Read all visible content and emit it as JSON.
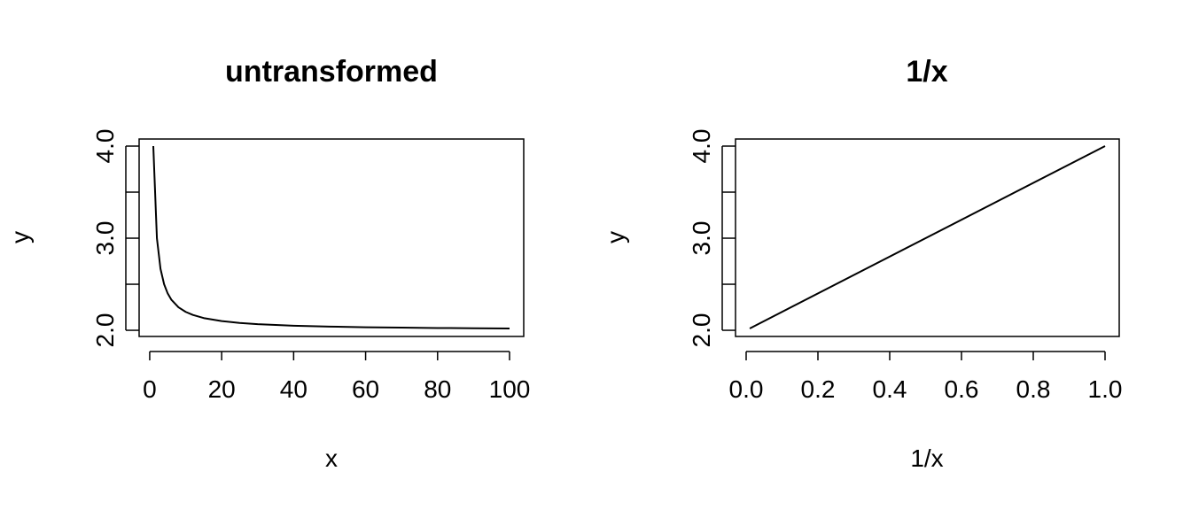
{
  "chart_data": [
    {
      "type": "line",
      "title": "untransformed",
      "xlabel": "x",
      "ylabel": "y",
      "xlim": [
        1,
        100
      ],
      "ylim": [
        2.01,
        4.0
      ],
      "x_ticks": [
        0,
        20,
        40,
        60,
        80,
        100
      ],
      "x_tick_labels": [
        "0",
        "20",
        "40",
        "60",
        "80",
        "100"
      ],
      "y_ticks": [
        2.0,
        2.5,
        3.0,
        3.5,
        4.0
      ],
      "y_tick_labels": [
        "2.0",
        "",
        "3.0",
        "",
        "4.0"
      ],
      "grid": false,
      "series": [
        {
          "x": [
            1,
            2,
            3,
            4,
            5,
            6,
            8,
            10,
            12,
            15,
            20,
            25,
            30,
            40,
            50,
            60,
            70,
            80,
            90,
            100
          ],
          "values": [
            4.0,
            3.0,
            2.667,
            2.5,
            2.4,
            2.333,
            2.25,
            2.2,
            2.167,
            2.133,
            2.1,
            2.08,
            2.067,
            2.05,
            2.04,
            2.033,
            2.029,
            2.025,
            2.022,
            2.02
          ]
        }
      ]
    },
    {
      "type": "line",
      "title": "1/x",
      "xlabel": "1/x",
      "ylabel": "y",
      "xlim": [
        0.0,
        1.0
      ],
      "ylim": [
        2.01,
        4.0
      ],
      "x_ticks": [
        0.0,
        0.2,
        0.4,
        0.6,
        0.8,
        1.0
      ],
      "x_tick_labels": [
        "0.0",
        "0.2",
        "0.4",
        "0.6",
        "0.8",
        "1.0"
      ],
      "y_ticks": [
        2.0,
        2.5,
        3.0,
        3.5,
        4.0
      ],
      "y_tick_labels": [
        "2.0",
        "",
        "3.0",
        "",
        "4.0"
      ],
      "grid": false,
      "series": [
        {
          "x": [
            0.01,
            1.0
          ],
          "values": [
            2.02,
            4.0
          ]
        }
      ]
    }
  ]
}
